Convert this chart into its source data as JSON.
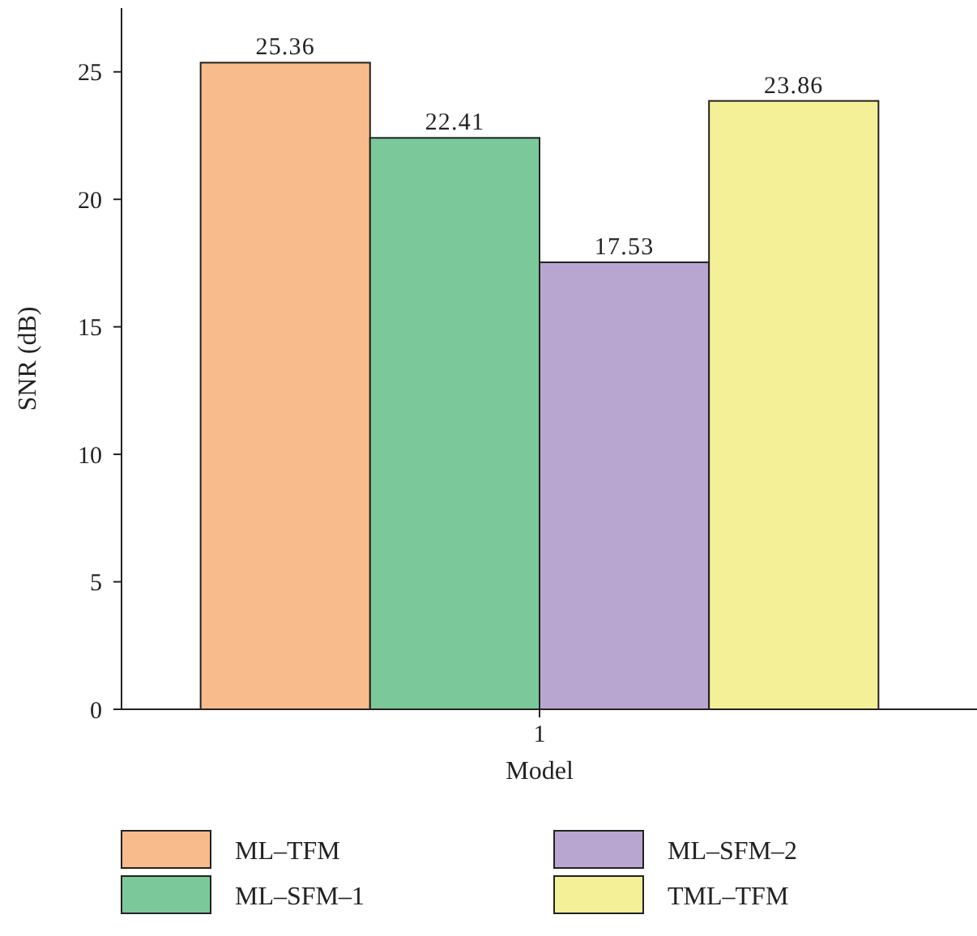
{
  "chart_data": {
    "type": "bar",
    "xlabel": "Model",
    "ylabel": "SNR (dB)",
    "categories": [
      "1"
    ],
    "series": [
      {
        "name": "ML–TFM",
        "color": "#f8bb8c",
        "values": [
          25.36
        ]
      },
      {
        "name": "ML–SFM–1",
        "color": "#7bc99a",
        "values": [
          22.41
        ]
      },
      {
        "name": "ML–SFM–2",
        "color": "#b9a6d0",
        "values": [
          17.53
        ]
      },
      {
        "name": "TML–TFM",
        "color": "#f4f097",
        "values": [
          23.86
        ]
      }
    ],
    "data_labels": true,
    "ylim": [
      0,
      27.5
    ],
    "yticks": [
      0,
      5,
      10,
      15,
      20,
      25
    ],
    "legend": "bottom",
    "grid": false
  }
}
